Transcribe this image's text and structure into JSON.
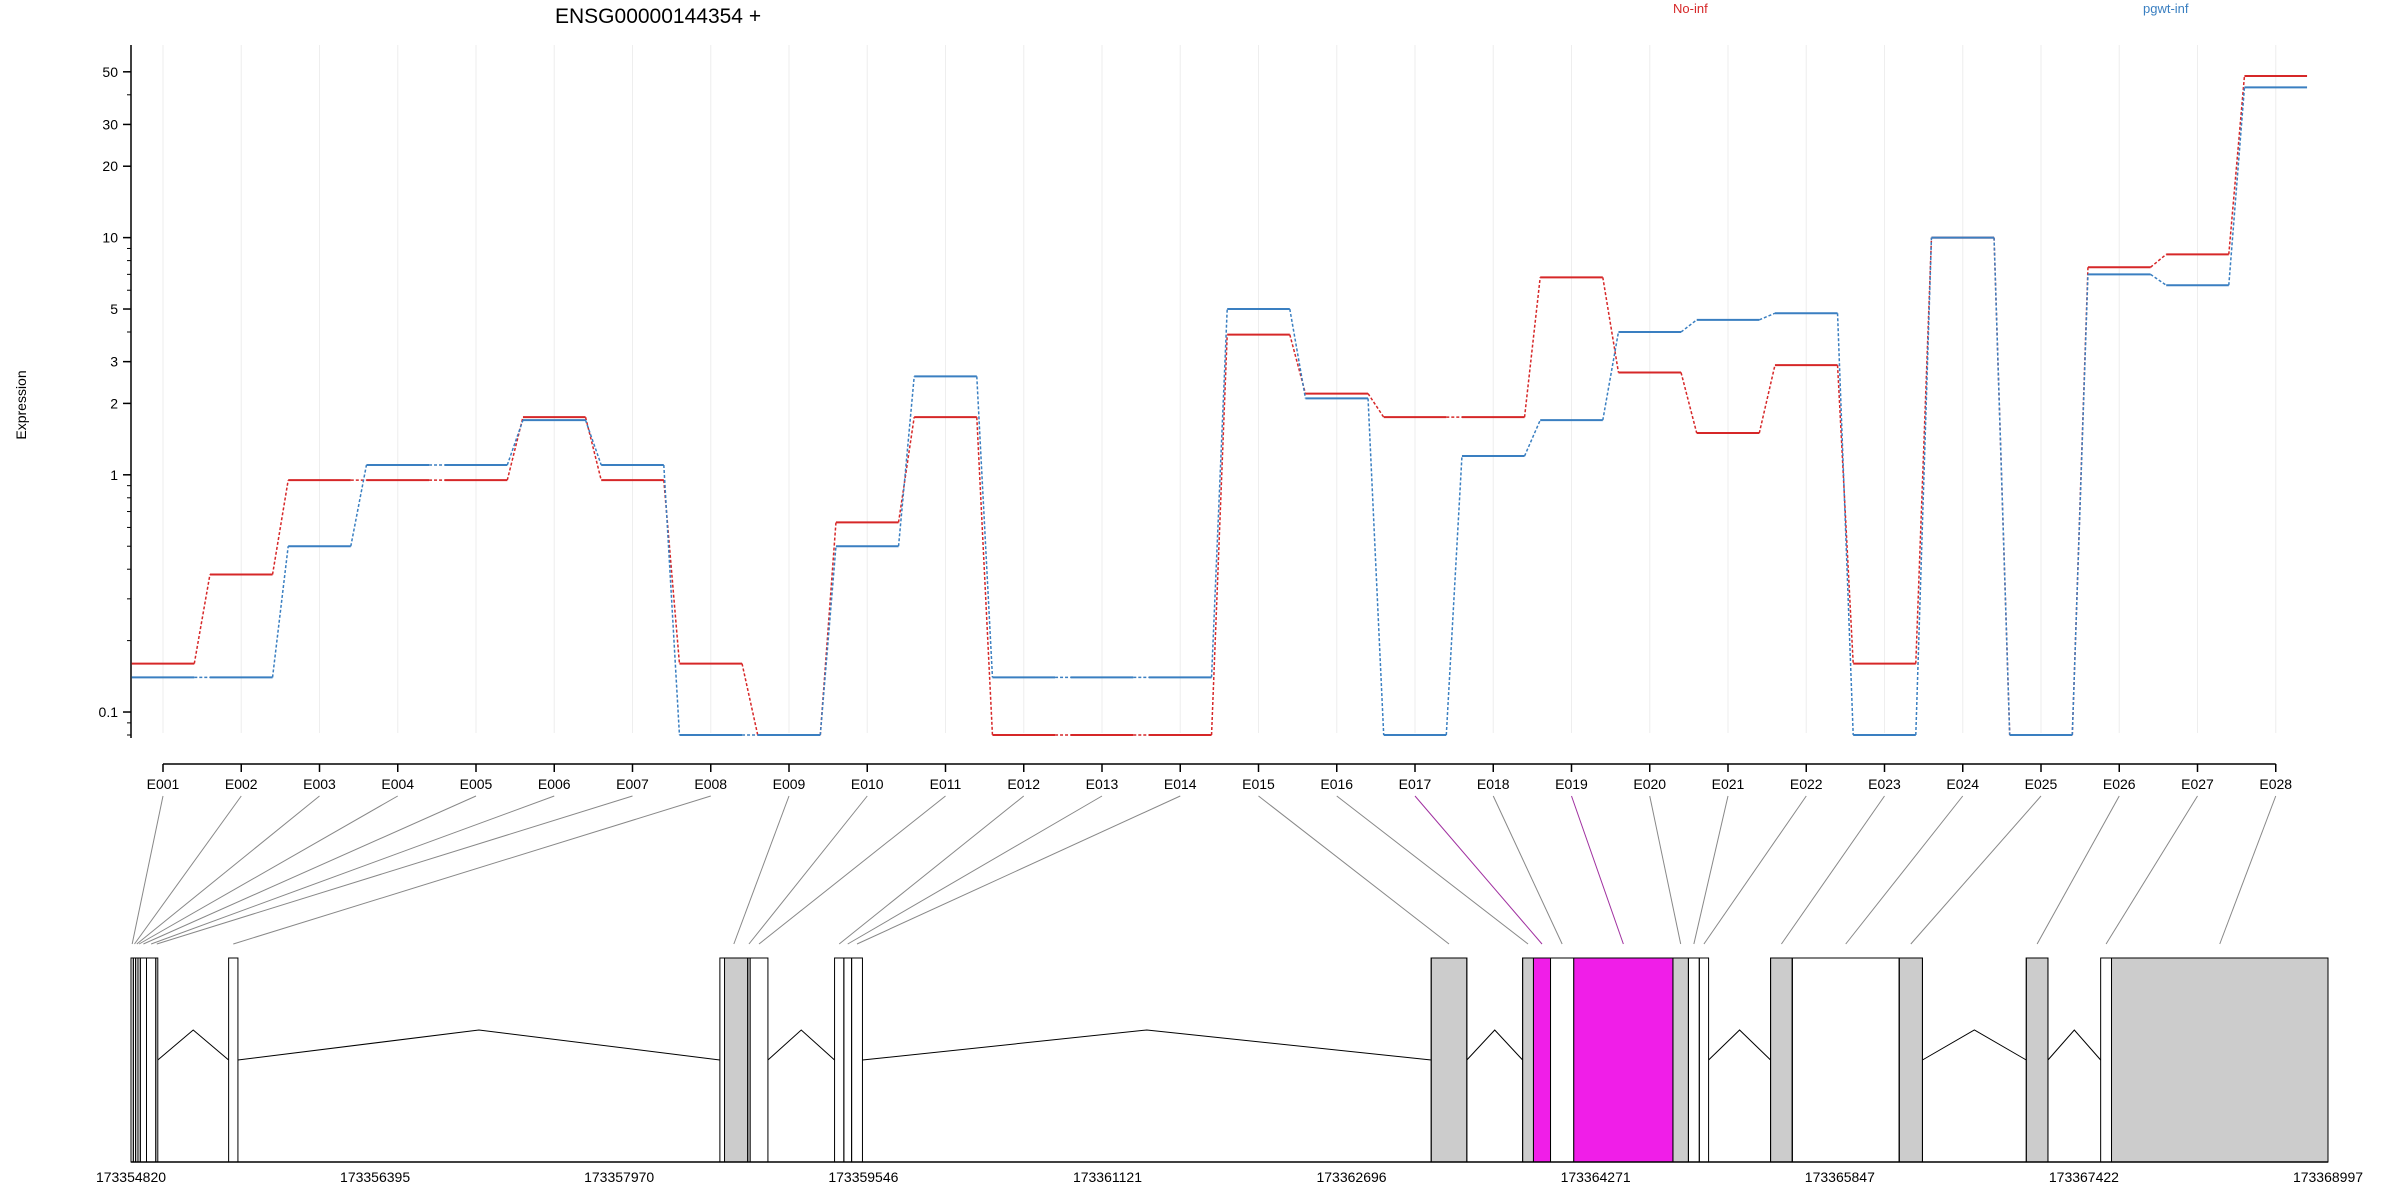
{
  "chart_data": {
    "type": "line",
    "title": "ENSG00000144354 +",
    "ylabel": "Expression",
    "y_scale": "log",
    "ylim": [
      0.08,
      55
    ],
    "y_ticks": [
      {
        "value": 0.1,
        "label": "0.1"
      },
      {
        "value": 1,
        "label": "1"
      },
      {
        "value": 2,
        "label": "2"
      },
      {
        "value": 3,
        "label": "3"
      },
      {
        "value": 5,
        "label": "5"
      },
      {
        "value": 10,
        "label": "10"
      },
      {
        "value": 20,
        "label": "20"
      },
      {
        "value": 30,
        "label": "30"
      },
      {
        "value": 50,
        "label": "50"
      }
    ],
    "categories": [
      "E001",
      "E002",
      "E003",
      "E004",
      "E005",
      "E006",
      "E007",
      "E008",
      "E009",
      "E010",
      "E011",
      "E012",
      "E013",
      "E014",
      "E015",
      "E016",
      "E017",
      "E018",
      "E019",
      "E020",
      "E021",
      "E022",
      "E023",
      "E024",
      "E025",
      "E026",
      "E027",
      "E028"
    ],
    "series": [
      {
        "name": "No-inf",
        "color": "#d62728",
        "values": [
          0.16,
          0.38,
          0.95,
          0.95,
          0.95,
          1.75,
          0.95,
          0.16,
          0.08,
          0.63,
          1.75,
          0.08,
          0.08,
          0.08,
          3.9,
          2.2,
          1.75,
          1.75,
          6.8,
          2.7,
          1.5,
          2.9,
          0.16,
          10.0,
          0.08,
          7.5,
          8.5,
          48.0
        ]
      },
      {
        "name": "pgwt-inf",
        "color": "#3a7fc1",
        "values": [
          0.14,
          0.14,
          0.5,
          1.1,
          1.1,
          1.7,
          1.1,
          0.08,
          0.08,
          0.5,
          2.6,
          0.14,
          0.14,
          0.14,
          5.0,
          2.1,
          0.08,
          1.2,
          1.7,
          4.0,
          4.5,
          4.8,
          0.08,
          10.0,
          0.08,
          7.0,
          6.3,
          43.0
        ]
      }
    ],
    "highlighted_exons": [
      "E017",
      "E019"
    ],
    "highlight_color": "#f01ee8",
    "gene_coordinates": [
      "173354820",
      "173356395",
      "173357970",
      "173359546",
      "173361121",
      "173362696",
      "173364271",
      "173365847",
      "173367422",
      "173368997"
    ],
    "gene_start": 173354820,
    "gene_end": 173368997,
    "exon_regions": [
      {
        "id": "E001",
        "start": 173354820,
        "end": 173354835
      },
      {
        "id": "E002",
        "start": 173354835,
        "end": 173354850
      },
      {
        "id": "E003",
        "start": 173354850,
        "end": 173354865
      },
      {
        "id": "E004",
        "start": 173354865,
        "end": 173354880
      },
      {
        "id": "E005",
        "start": 173354880,
        "end": 173354920
      },
      {
        "id": "E006",
        "start": 173354920,
        "end": 173354980
      },
      {
        "id": "E007",
        "start": 173354980,
        "end": 173354990
      },
      {
        "id": "E008",
        "start": 173355450,
        "end": 173355510
      },
      {
        "id": "E009",
        "start": 173358620,
        "end": 173358800
      },
      {
        "id": "E010",
        "start": 173358800,
        "end": 173358815
      },
      {
        "id": "E011",
        "start": 173358815,
        "end": 173358930
      },
      {
        "id": "E012",
        "start": 173359360,
        "end": 173359420
      },
      {
        "id": "E013",
        "start": 173359420,
        "end": 173359470
      },
      {
        "id": "E014",
        "start": 173359470,
        "end": 173359540
      },
      {
        "id": "E015",
        "start": 173363210,
        "end": 173363440
      },
      {
        "id": "E016",
        "start": 173363800,
        "end": 173363870
      },
      {
        "id": "E017",
        "start": 173363870,
        "end": 173363980
      },
      {
        "id": "E018",
        "start": 173363980,
        "end": 173364130
      },
      {
        "id": "E019",
        "start": 173364130,
        "end": 173364770
      },
      {
        "id": "E020",
        "start": 173364770,
        "end": 173364870
      },
      {
        "id": "E021",
        "start": 173364870,
        "end": 173364940
      },
      {
        "id": "E022",
        "start": 173364940,
        "end": 173365000
      },
      {
        "id": "E023",
        "start": 173365400,
        "end": 173365540
      },
      {
        "id": "E024",
        "start": 173365540,
        "end": 173366230
      },
      {
        "id": "E025",
        "start": 173366230,
        "end": 173366380
      },
      {
        "id": "E026",
        "start": 173367050,
        "end": 173367190
      },
      {
        "id": "E027",
        "start": 173367530,
        "end": 173367600
      },
      {
        "id": "E028",
        "start": 173367600,
        "end": 173368997
      }
    ],
    "grey_regions": [
      {
        "start": 173356395,
        "end": 173356395
      },
      {
        "start": 173358650,
        "end": 173358800
      },
      {
        "start": 173363210,
        "end": 173363440
      },
      {
        "start": 173363800,
        "end": 173363870
      },
      {
        "start": 173364770,
        "end": 173364870
      },
      {
        "start": 173365400,
        "end": 173365540
      },
      {
        "start": 173366230,
        "end": 173366380
      },
      {
        "start": 173367050,
        "end": 173367190
      },
      {
        "start": 173367600,
        "end": 173368997
      }
    ],
    "legend_placement": "top-right",
    "grid": true
  }
}
